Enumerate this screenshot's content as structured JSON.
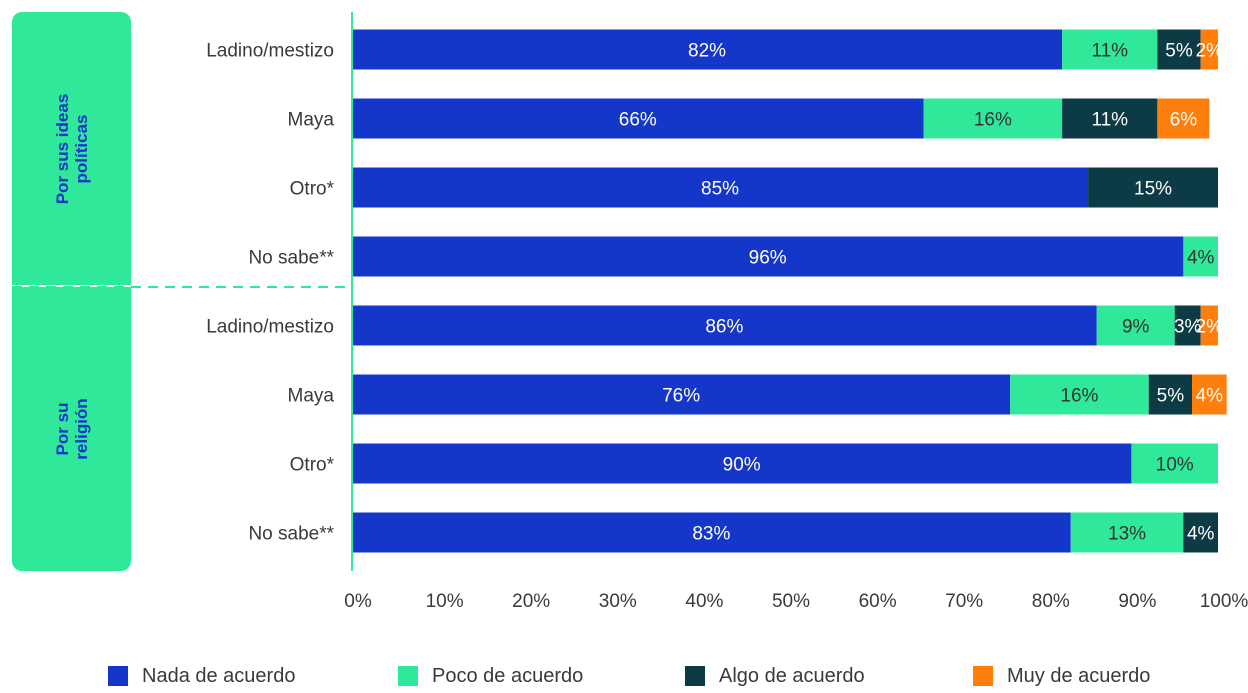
{
  "chart_data": {
    "type": "bar",
    "orientation": "horizontal",
    "stacked": true,
    "groups": [
      {
        "label_lines": [
          "Por sus ideas",
          "políticas"
        ],
        "rows": [
          0,
          1,
          2,
          3
        ]
      },
      {
        "label_lines": [
          "Por su",
          "religión"
        ],
        "rows": [
          4,
          5,
          6,
          7
        ]
      }
    ],
    "categories": [
      "Ladino/mestizo",
      "Maya",
      "Otro*",
      "No sabe**",
      "Ladino/mestizo",
      "Maya",
      "Otro*",
      "No sabe**"
    ],
    "series": [
      {
        "name": "Nada de acuerdo",
        "color": "#1537c9",
        "values": [
          82,
          66,
          85,
          96,
          86,
          76,
          90,
          83
        ]
      },
      {
        "name": "Poco de acuerdo",
        "color": "#2fe89a",
        "values": [
          11,
          16,
          0,
          4,
          9,
          16,
          10,
          13
        ]
      },
      {
        "name": "Algo de acuerdo",
        "color": "#0c3a45",
        "values": [
          5,
          11,
          15,
          0,
          3,
          5,
          0,
          4
        ]
      },
      {
        "name": "Muy de acuerdo",
        "color": "#ff7f0e",
        "values": [
          2,
          6,
          0,
          0,
          2,
          4,
          0,
          0
        ]
      }
    ],
    "x_ticks": [
      "0%",
      "10%",
      "20%",
      "30%",
      "40%",
      "50%",
      "60%",
      "70%",
      "80%",
      "90%",
      "100%"
    ],
    "xlim": [
      0,
      100
    ],
    "legend_position": "bottom",
    "grid": false,
    "axis_color": "#2fe89a"
  }
}
